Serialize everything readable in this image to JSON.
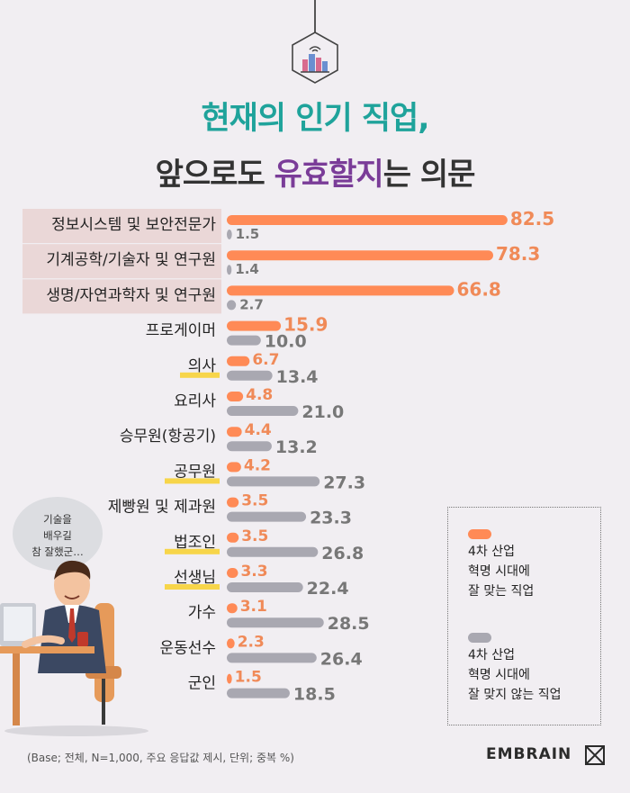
{
  "title_line1": "현재의 인기 직업,",
  "title_line2_pre": "앞으로도 ",
  "title_line2_hl": "유효할지",
  "title_line2_post": "는 의문",
  "bubble_text": "기술을\n배우길\n참 잘했군…",
  "legend": {
    "series1": "4차 산업\n혁명 시대에\n잘 맞는 직업",
    "series2": "4차 산업\n혁명 시대에\n잘 맞지 않는 직업"
  },
  "footnote": "(Base; 전체, N=1,000, 주요 응답값 제시, 단위; 중복 %)",
  "brand": "EMBRAIN",
  "colors": {
    "series1": "#ff8a56",
    "series2": "#a9a8b1",
    "highlight_box": "#ead7d7",
    "underline": "#f7d54a",
    "title_teal": "#1fa39b",
    "title_purple": "#7a3c98"
  },
  "chart_data": {
    "type": "bar",
    "orientation": "horizontal",
    "categories": [
      "정보시스템 및 보안전문가",
      "기계공학/기술자 및 연구원",
      "생명/자연과학자 및 연구원",
      "프로게이머",
      "의사",
      "요리사",
      "승무원(항공기)",
      "공무원",
      "제빵원 및 제과원",
      "법조인",
      "선생님",
      "가수",
      "운동선수",
      "군인"
    ],
    "series": [
      {
        "name": "4차 산업 혁명 시대에 잘 맞는 직업",
        "values": [
          82.5,
          78.3,
          66.8,
          15.9,
          6.7,
          4.8,
          4.4,
          4.2,
          3.5,
          3.5,
          3.3,
          3.1,
          2.3,
          1.5
        ]
      },
      {
        "name": "4차 산업 혁명 시대에 잘 맞지 않는 직업",
        "values": [
          1.5,
          1.4,
          2.7,
          10.0,
          13.4,
          21.0,
          13.2,
          27.3,
          23.3,
          26.8,
          22.4,
          28.5,
          26.4,
          18.5
        ]
      }
    ],
    "boxed_categories": [
      "정보시스템 및 보안전문가",
      "기계공학/기술자 및 연구원",
      "생명/자연과학자 및 연구원"
    ],
    "underlined_categories": [
      "의사",
      "공무원",
      "법조인",
      "선생님"
    ],
    "xlim": [
      0,
      100
    ],
    "legend_position": "right"
  }
}
